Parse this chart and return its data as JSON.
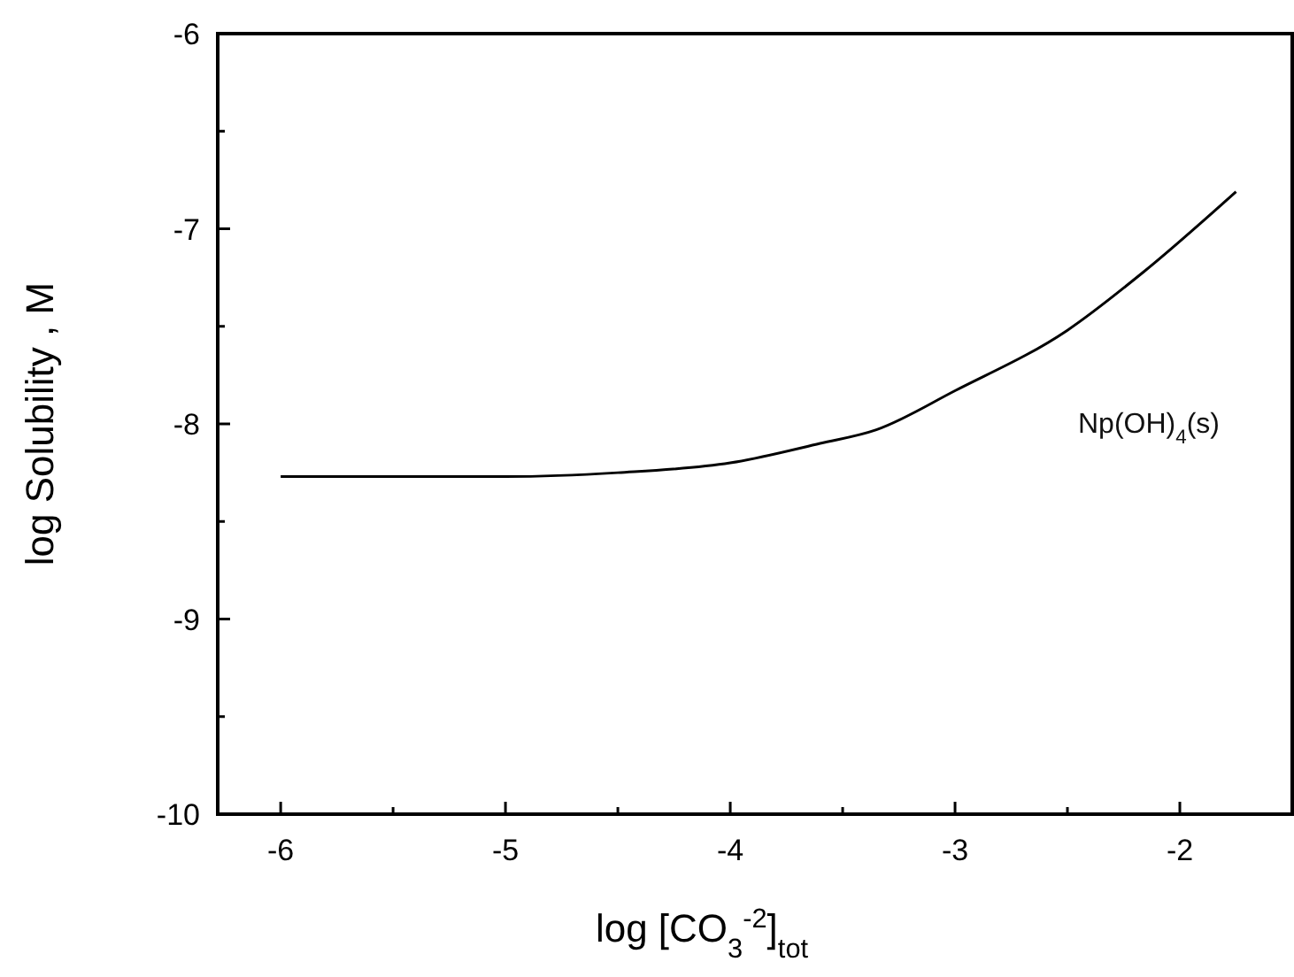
{
  "chart_data": {
    "type": "line",
    "xlabel": "log [CO$_{3}$$^{-2}$]$_{tot}$",
    "ylabel": "log Solubility , M",
    "xlim": [
      -6.28,
      -1.5
    ],
    "ylim": [
      -10,
      -6
    ],
    "xticks": [
      -6,
      {
        "value": -5.5,
        "label": null
      },
      -5,
      {
        "value": -4.5,
        "label": null
      },
      -4,
      {
        "value": -3.5,
        "label": null
      },
      -3,
      {
        "value": -2.5,
        "label": null
      },
      -2
    ],
    "yticks": [
      -10,
      {
        "value": -9.5,
        "label": null
      },
      -9,
      {
        "value": -8.5,
        "label": null
      },
      -8,
      {
        "value": -7.5,
        "label": null
      },
      -7,
      {
        "value": -6.5,
        "label": null
      },
      -6
    ],
    "grid": false,
    "marker": "none",
    "line_style": "solid",
    "series": [
      {
        "name": "Np(OH)$_{4}$(s)",
        "color": "#000000",
        "x": [
          -6,
          -5,
          -4.5,
          -4,
          -3.6,
          -3.35,
          -3,
          -2.5,
          -2.16,
          -1.75
        ],
        "values": [
          -8.27,
          -8.27,
          -8.25,
          -8.2,
          -8.1,
          -8.03,
          -7.83,
          -7.52,
          -7.22,
          -6.81
        ]
      }
    ]
  }
}
